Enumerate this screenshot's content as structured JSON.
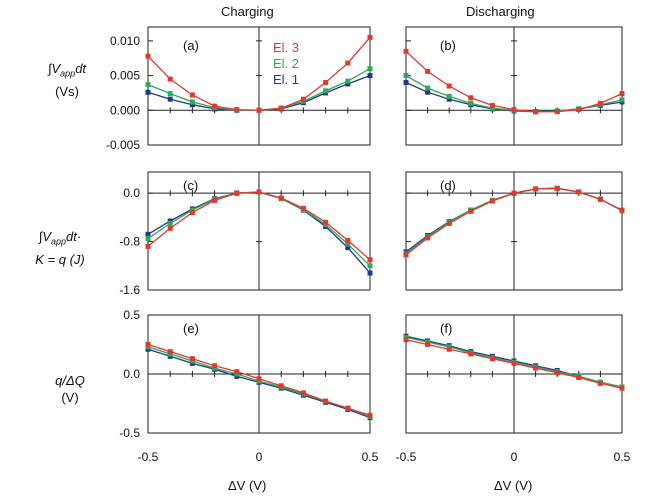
{
  "column_titles": [
    "Charging",
    "Discharging"
  ],
  "row_ylabels": [
    [
      "∫V",
      "app",
      "dt",
      "(Vs)"
    ],
    [
      "∫V",
      "app",
      "dt·",
      "K = q (J)"
    ],
    [
      "q/ΔQ",
      "(V)"
    ]
  ],
  "xlabel": "ΔV (V)",
  "legend": [
    "El. 3",
    "El. 2",
    "El. 1"
  ],
  "colors": {
    "El. 3": "#e03a2f",
    "El. 2": "#2eaa5a",
    "El. 1": "#1f3a8c"
  },
  "chart_data": [
    {
      "type": "line",
      "panel": "(a)",
      "x": [
        -0.5,
        -0.4,
        -0.3,
        -0.2,
        -0.1,
        0.0,
        0.1,
        0.2,
        0.3,
        0.4,
        0.5
      ],
      "xlim": [
        -0.5,
        0.5
      ],
      "ylim": [
        -0.005,
        0.012
      ],
      "yticks": [
        -0.005,
        0.0,
        0.005,
        0.01
      ],
      "ytick_labels": [
        "-0.005",
        "0.000",
        "0.005",
        "0.010"
      ],
      "xticks": [
        -0.5,
        0,
        0.5
      ],
      "xtick_labels": [],
      "series": [
        {
          "name": "El. 3",
          "values": [
            0.0078,
            0.0045,
            0.0022,
            0.0006,
            0.0001,
            0.0,
            0.0003,
            0.0016,
            0.004,
            0.0068,
            0.0105
          ]
        },
        {
          "name": "El. 2",
          "values": [
            0.0037,
            0.0024,
            0.0012,
            0.0004,
            0.0,
            0.0,
            0.0003,
            0.0013,
            0.0028,
            0.0042,
            0.006
          ]
        },
        {
          "name": "El. 1",
          "values": [
            0.0026,
            0.0016,
            0.0008,
            0.0002,
            0.0,
            0.0,
            0.0002,
            0.0011,
            0.0025,
            0.0038,
            0.005
          ]
        }
      ]
    },
    {
      "type": "line",
      "panel": "(b)",
      "x": [
        -0.5,
        -0.4,
        -0.3,
        -0.2,
        -0.1,
        0.0,
        0.1,
        0.2,
        0.3,
        0.4,
        0.5
      ],
      "xlim": [
        -0.5,
        0.5
      ],
      "ylim": [
        -0.005,
        0.012
      ],
      "yticks": [
        -0.005,
        0.0,
        0.005,
        0.01
      ],
      "ytick_labels": [],
      "xticks": [
        -0.5,
        0,
        0.5
      ],
      "xtick_labels": [],
      "series": [
        {
          "name": "El. 3",
          "values": [
            0.0085,
            0.0056,
            0.0035,
            0.0018,
            0.0007,
            0.0001,
            -0.0002,
            -0.0002,
            0.0001,
            0.001,
            0.0024
          ]
        },
        {
          "name": "El. 2",
          "values": [
            0.005,
            0.0032,
            0.002,
            0.001,
            0.0003,
            0.0,
            -0.0002,
            -0.0001,
            0.0002,
            0.0008,
            0.0015
          ]
        },
        {
          "name": "El. 1",
          "values": [
            0.004,
            0.0026,
            0.0016,
            0.0008,
            0.0002,
            -0.0001,
            -0.0002,
            -0.0001,
            0.0002,
            0.0007,
            0.0012
          ]
        }
      ]
    },
    {
      "type": "line",
      "panel": "(c)",
      "x": [
        -0.5,
        -0.4,
        -0.3,
        -0.2,
        -0.1,
        0.0,
        0.1,
        0.2,
        0.3,
        0.4,
        0.5
      ],
      "xlim": [
        -0.5,
        0.5
      ],
      "ylim": [
        -1.6,
        0.35
      ],
      "yticks": [
        -1.6,
        -0.8,
        0.0
      ],
      "ytick_labels": [
        "-1.6",
        "-0.8",
        "0.0"
      ],
      "xticks": [
        -0.5,
        0,
        0.5
      ],
      "xtick_labels": [],
      "series": [
        {
          "name": "El. 3",
          "values": [
            -0.88,
            -0.58,
            -0.32,
            -0.12,
            0.0,
            0.02,
            -0.08,
            -0.25,
            -0.48,
            -0.78,
            -1.1
          ]
        },
        {
          "name": "El. 2",
          "values": [
            -0.75,
            -0.5,
            -0.28,
            -0.1,
            0.0,
            0.02,
            -0.09,
            -0.27,
            -0.52,
            -0.84,
            -1.2
          ]
        },
        {
          "name": "El. 1",
          "values": [
            -0.68,
            -0.46,
            -0.26,
            -0.09,
            0.0,
            0.02,
            -0.09,
            -0.28,
            -0.55,
            -0.9,
            -1.32
          ]
        }
      ]
    },
    {
      "type": "line",
      "panel": "(d)",
      "x": [
        -0.5,
        -0.4,
        -0.3,
        -0.2,
        -0.1,
        0.0,
        0.1,
        0.2,
        0.3,
        0.4,
        0.5
      ],
      "xlim": [
        -0.5,
        0.5
      ],
      "ylim": [
        -1.6,
        0.35
      ],
      "yticks": [
        -1.6,
        -0.8,
        0.0
      ],
      "ytick_labels": [],
      "xticks": [
        -0.5,
        0,
        0.5
      ],
      "xtick_labels": [],
      "series": [
        {
          "name": "El. 3",
          "values": [
            -1.02,
            -0.74,
            -0.5,
            -0.3,
            -0.13,
            0.0,
            0.07,
            0.08,
            0.02,
            -0.1,
            -0.28
          ]
        },
        {
          "name": "El. 2",
          "values": [
            -1.0,
            -0.72,
            -0.48,
            -0.28,
            -0.12,
            0.0,
            0.07,
            0.08,
            0.02,
            -0.1,
            -0.29
          ]
        },
        {
          "name": "El. 1",
          "values": [
            -0.97,
            -0.7,
            -0.47,
            -0.28,
            -0.12,
            0.0,
            0.07,
            0.08,
            0.02,
            -0.1,
            -0.29
          ]
        }
      ]
    },
    {
      "type": "line",
      "panel": "(e)",
      "x": [
        -0.5,
        -0.4,
        -0.3,
        -0.2,
        -0.1,
        0.0,
        0.1,
        0.2,
        0.3,
        0.4,
        0.5
      ],
      "xlim": [
        -0.5,
        0.5
      ],
      "ylim": [
        -0.5,
        0.5
      ],
      "yticks": [
        -0.5,
        0.0,
        0.5
      ],
      "ytick_labels": [
        "-0.5",
        "0.0",
        "0.5"
      ],
      "xticks": [
        -0.5,
        0,
        0.5
      ],
      "xtick_labels": [
        "-0.5",
        "0",
        "0.5"
      ],
      "series": [
        {
          "name": "El. 3",
          "values": [
            0.25,
            0.19,
            0.13,
            0.07,
            0.02,
            -0.04,
            -0.1,
            -0.16,
            -0.23,
            -0.29,
            -0.35
          ]
        },
        {
          "name": "El. 2",
          "values": [
            0.23,
            0.17,
            0.11,
            0.05,
            0.0,
            -0.06,
            -0.11,
            -0.17,
            -0.23,
            -0.29,
            -0.36
          ]
        },
        {
          "name": "El. 1",
          "values": [
            0.21,
            0.15,
            0.09,
            0.04,
            -0.02,
            -0.07,
            -0.12,
            -0.18,
            -0.24,
            -0.3,
            -0.37
          ]
        }
      ]
    },
    {
      "type": "line",
      "panel": "(f)",
      "x": [
        -0.5,
        -0.4,
        -0.3,
        -0.2,
        -0.1,
        0.0,
        0.1,
        0.2,
        0.3,
        0.4,
        0.5
      ],
      "xlim": [
        -0.5,
        0.5
      ],
      "ylim": [
        -0.5,
        0.5
      ],
      "yticks": [
        -0.5,
        0.0,
        0.5
      ],
      "ytick_labels": [],
      "xticks": [
        -0.5,
        0,
        0.5
      ],
      "xtick_labels": [
        "-0.5",
        "0",
        "0.5"
      ],
      "series": [
        {
          "name": "El. 3",
          "values": [
            0.29,
            0.25,
            0.21,
            0.17,
            0.13,
            0.09,
            0.05,
            0.01,
            -0.03,
            -0.08,
            -0.12
          ]
        },
        {
          "name": "El. 2",
          "values": [
            0.31,
            0.27,
            0.23,
            0.18,
            0.14,
            0.1,
            0.06,
            0.02,
            -0.02,
            -0.07,
            -0.11
          ]
        },
        {
          "name": "El. 1",
          "values": [
            0.32,
            0.28,
            0.24,
            0.19,
            0.15,
            0.11,
            0.07,
            0.03,
            -0.02,
            -0.07,
            -0.11
          ]
        }
      ]
    }
  ]
}
